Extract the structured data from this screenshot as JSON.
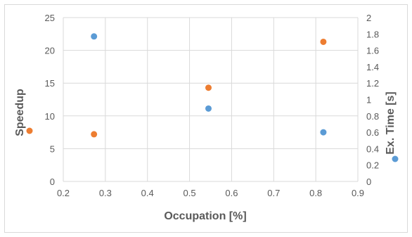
{
  "chart_data": {
    "type": "scatter",
    "title": "",
    "xlabel": "Occupation [%]",
    "ylabel": "Speedup",
    "y2label": "Ex. Time [s]",
    "xlim": [
      0.2,
      0.9
    ],
    "ylim": [
      0,
      25
    ],
    "y2lim": [
      0,
      2
    ],
    "x_ticks": [
      "0.2",
      "0.3",
      "0.4",
      "0.5",
      "0.6",
      "0.7",
      "0.8",
      "0.9"
    ],
    "y_ticks": [
      "0",
      "5",
      "10",
      "15",
      "20",
      "25"
    ],
    "y2_ticks": [
      "0",
      "0.2",
      "0.4",
      "0.6",
      "0.8",
      "1",
      "1.2",
      "1.4",
      "1.6",
      "1.8",
      "2"
    ],
    "grid": true,
    "series": [
      {
        "axis": "left",
        "color": "#ed7d31",
        "points": [
          {
            "x": 0.273,
            "y": 7.2
          },
          {
            "x": 0.545,
            "y": 14.3
          },
          {
            "x": 0.818,
            "y": 21.3
          }
        ]
      },
      {
        "axis": "right",
        "color": "#5b9bd5",
        "points": [
          {
            "x": 0.273,
            "y": 1.77
          },
          {
            "x": 0.545,
            "y": 0.89
          },
          {
            "x": 0.818,
            "y": 0.6
          }
        ]
      }
    ]
  }
}
